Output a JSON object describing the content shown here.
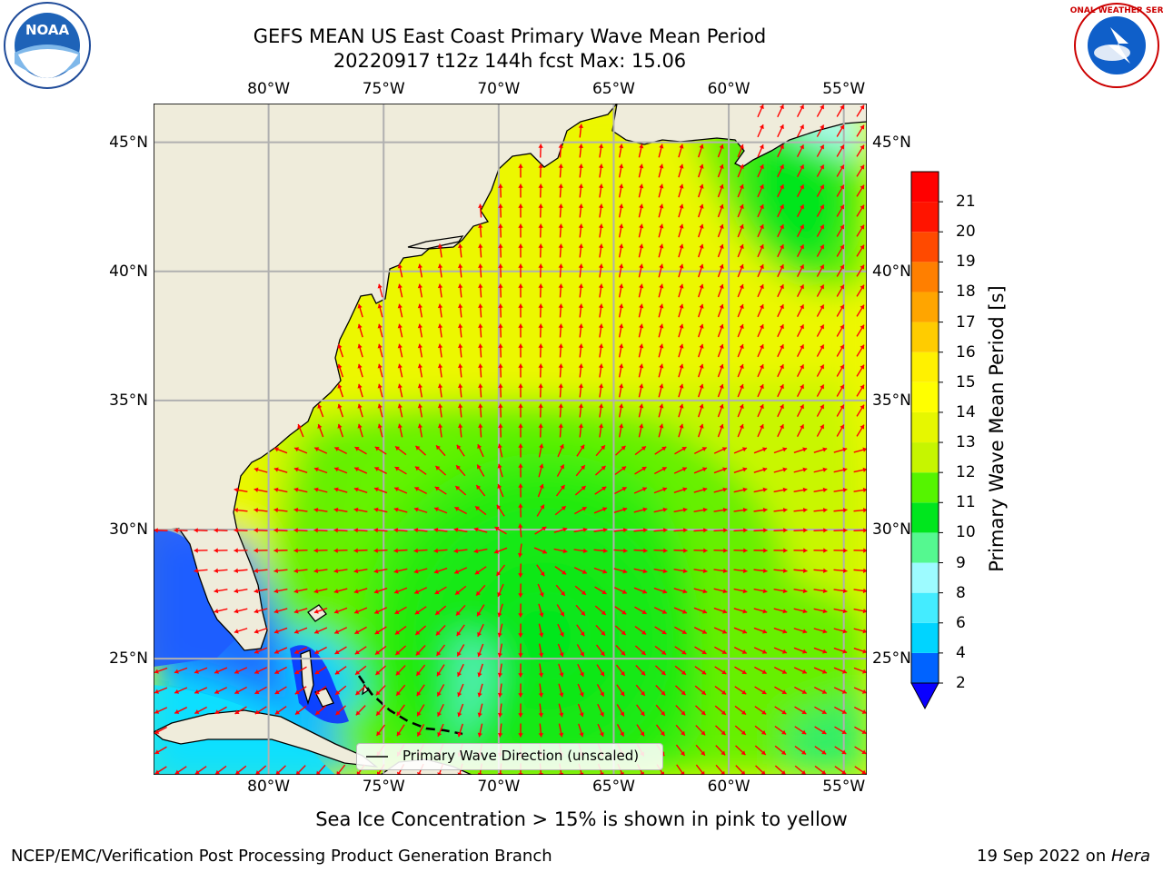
{
  "title": {
    "line1": "GEFS MEAN US East Coast Primary Wave Mean Period",
    "line2": "20220917 t12z 144h fcst   Max: 15.06"
  },
  "map": {
    "lon_ticks": [
      "80°W",
      "75°W",
      "70°W",
      "65°W",
      "60°W",
      "55°W"
    ],
    "lat_ticks": [
      "45°N",
      "40°N",
      "35°N",
      "30°N",
      "25°N"
    ],
    "lon_range": [
      -85,
      -54
    ],
    "lat_range": [
      20.5,
      46.5
    ],
    "grid": true,
    "legend": {
      "label": "Primary Wave Direction (unscaled)",
      "placement": "bottom-center"
    },
    "land_color": "#efecdb",
    "arrow_color": "#ff0000"
  },
  "colorbar": {
    "label": "Primary Wave Mean Period [s]",
    "tick_labels": [
      "2",
      "4",
      "6",
      "8",
      "9",
      "10",
      "11",
      "12",
      "13",
      "14",
      "15",
      "16",
      "17",
      "18",
      "19",
      "20",
      "21"
    ],
    "colors": [
      "#0063ff",
      "#00d4ff",
      "#44ecff",
      "#9dfbff",
      "#55f890",
      "#00e61e",
      "#55f400",
      "#c6f500",
      "#e6f700",
      "#ffff00",
      "#fff100",
      "#ffcc00",
      "#ffa500",
      "#ff7f00",
      "#ff4a00",
      "#ff1400",
      "#ff0000"
    ],
    "extend_min_color": "#0a00ff"
  },
  "subtitle": "Sea Ice Concentration > 15% is shown in pink to yellow",
  "footer": {
    "left": "NCEP/EMC/Verification Post Processing Product Generation Branch",
    "right_date": "19 Sep 2022 on ",
    "right_host": "Hera"
  },
  "logos": {
    "left": "NOAA",
    "right": "NATIONAL WEATHER SERVICE"
  }
}
